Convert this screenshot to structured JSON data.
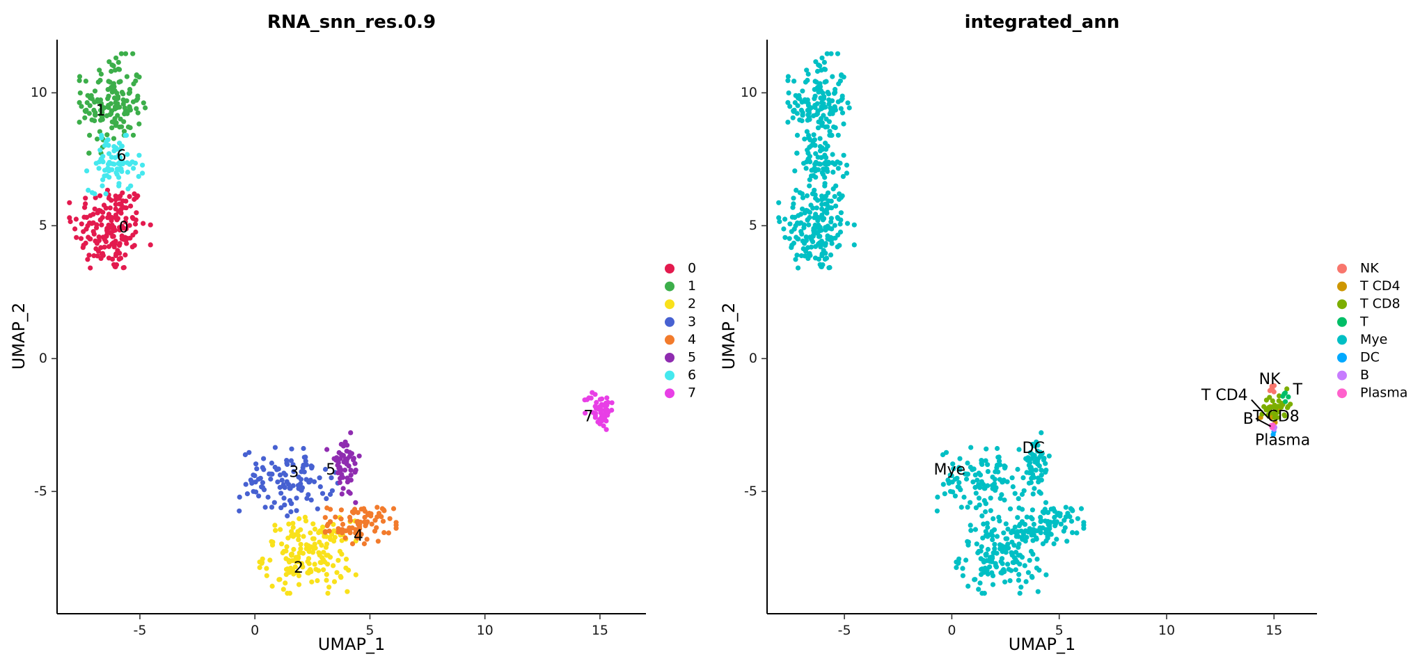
{
  "figure": {
    "panels": 2,
    "xlabel": "UMAP_1",
    "ylabel": "UMAP_2"
  },
  "chart_data": [
    {
      "type": "scatter",
      "title": "RNA_snn_res.0.9",
      "xlabel": "UMAP_1",
      "ylabel": "UMAP_2",
      "xlim": [
        -8.6,
        17
      ],
      "ylim": [
        -9.6,
        12
      ],
      "xticks": [
        -5,
        0,
        5,
        10,
        15
      ],
      "yticks": [
        -5,
        0,
        5,
        10
      ],
      "xtick_labels": [
        "-5",
        "0",
        "5",
        "10",
        "15"
      ],
      "ytick_labels": [
        "-5",
        "0",
        "5",
        "10"
      ],
      "grid": false,
      "legend_position": "right",
      "legend": [
        "0",
        "1",
        "2",
        "3",
        "4",
        "5",
        "6",
        "7"
      ],
      "series": [
        {
          "name": "0",
          "color": "#E31A4E",
          "n": 170,
          "center": [
            -6.3,
            4.9
          ],
          "spread": [
            0.8,
            0.85
          ]
        },
        {
          "name": "1",
          "color": "#3CAE4A",
          "n": 150,
          "center": [
            -6.2,
            9.6
          ],
          "spread": [
            0.65,
            0.85
          ]
        },
        {
          "name": "2",
          "color": "#F9E11B",
          "n": 170,
          "center": [
            2.3,
            -7.4
          ],
          "spread": [
            0.95,
            0.65
          ]
        },
        {
          "name": "3",
          "color": "#4761D1",
          "n": 110,
          "center": [
            1.4,
            -4.6
          ],
          "spread": [
            1.0,
            0.6
          ]
        },
        {
          "name": "4",
          "color": "#F27B2C",
          "n": 80,
          "center": [
            4.6,
            -6.2
          ],
          "spread": [
            0.7,
            0.35
          ]
        },
        {
          "name": "5",
          "color": "#8F2CB0",
          "n": 50,
          "center": [
            3.9,
            -4.1
          ],
          "spread": [
            0.35,
            0.6
          ]
        },
        {
          "name": "6",
          "color": "#45E8EE",
          "n": 80,
          "center": [
            -6.1,
            7.3
          ],
          "spread": [
            0.55,
            0.5
          ]
        },
        {
          "name": "7",
          "color": "#E83FE6",
          "n": 50,
          "center": [
            15.0,
            -1.9
          ],
          "spread": [
            0.3,
            0.35
          ]
        }
      ],
      "cluster_labels": [
        {
          "text": "0",
          "x": -5.7,
          "y": 4.9
        },
        {
          "text": "1",
          "x": -6.7,
          "y": 9.3
        },
        {
          "text": "2",
          "x": 1.9,
          "y": -7.9
        },
        {
          "text": "3",
          "x": 1.7,
          "y": -4.3
        },
        {
          "text": "4",
          "x": 4.5,
          "y": -6.7
        },
        {
          "text": "5",
          "x": 3.3,
          "y": -4.2
        },
        {
          "text": "6",
          "x": -5.8,
          "y": 7.6
        },
        {
          "text": "7",
          "x": 14.5,
          "y": -2.2
        }
      ]
    },
    {
      "type": "scatter",
      "title": "integrated_ann",
      "xlabel": "UMAP_1",
      "ylabel": "UMAP_2",
      "xlim": [
        -8.6,
        17
      ],
      "ylim": [
        -9.6,
        12
      ],
      "xticks": [
        -5,
        0,
        5,
        10,
        15
      ],
      "yticks": [
        -5,
        0,
        5,
        10
      ],
      "xtick_labels": [
        "-5",
        "0",
        "5",
        "10",
        "15"
      ],
      "ytick_labels": [
        "-5",
        "0",
        "5",
        "10"
      ],
      "grid": false,
      "legend_position": "right",
      "legend": [
        "NK",
        "T CD4",
        "T CD8",
        "T",
        "Mye",
        "DC",
        "B",
        "Plasma"
      ],
      "series": [
        {
          "name": "NK",
          "color": "#F8766D",
          "n": 6,
          "center": [
            14.9,
            -1.2
          ],
          "spread": [
            0.12,
            0.1
          ]
        },
        {
          "name": "T CD4",
          "color": "#CD9600",
          "n": 10,
          "center": [
            14.8,
            -2.0
          ],
          "spread": [
            0.2,
            0.2
          ]
        },
        {
          "name": "T CD8",
          "color": "#7CAE00",
          "n": 35,
          "center": [
            15.1,
            -1.8
          ],
          "spread": [
            0.3,
            0.3
          ]
        },
        {
          "name": "T",
          "color": "#00BE67",
          "n": 5,
          "center": [
            15.6,
            -1.4
          ],
          "spread": [
            0.1,
            0.1
          ]
        },
        {
          "name": "Mye",
          "color": "#00BFC4",
          "n": 770,
          "center": [
            0,
            0
          ],
          "spread": [
            0,
            0
          ]
        },
        {
          "name": "DC",
          "color": "#00A9FF",
          "n": 2,
          "center": [
            15.0,
            -2.8
          ],
          "spread": [
            0.05,
            0.05
          ]
        },
        {
          "name": "B",
          "color": "#C77CFF",
          "n": 3,
          "center": [
            15.0,
            -2.6
          ],
          "spread": [
            0.05,
            0.05
          ]
        },
        {
          "name": "Plasma",
          "color": "#FF61CC",
          "n": 3,
          "center": [
            15.0,
            -2.6
          ],
          "spread": [
            0.06,
            0.06
          ]
        }
      ],
      "cluster_labels": [
        {
          "text": "NK",
          "x": 14.8,
          "y": -0.8
        },
        {
          "text": "T CD4",
          "x": 12.7,
          "y": -1.4
        },
        {
          "text": "T CD8",
          "x": 15.1,
          "y": -2.2
        },
        {
          "text": "T",
          "x": 16.1,
          "y": -1.2
        },
        {
          "text": "Mye",
          "x": -0.1,
          "y": -4.2
        },
        {
          "text": "DC",
          "x": 3.8,
          "y": -3.4
        },
        {
          "text": "B",
          "x": 13.8,
          "y": -2.3
        },
        {
          "text": "Plasma",
          "x": 15.4,
          "y": -3.1
        }
      ]
    }
  ]
}
